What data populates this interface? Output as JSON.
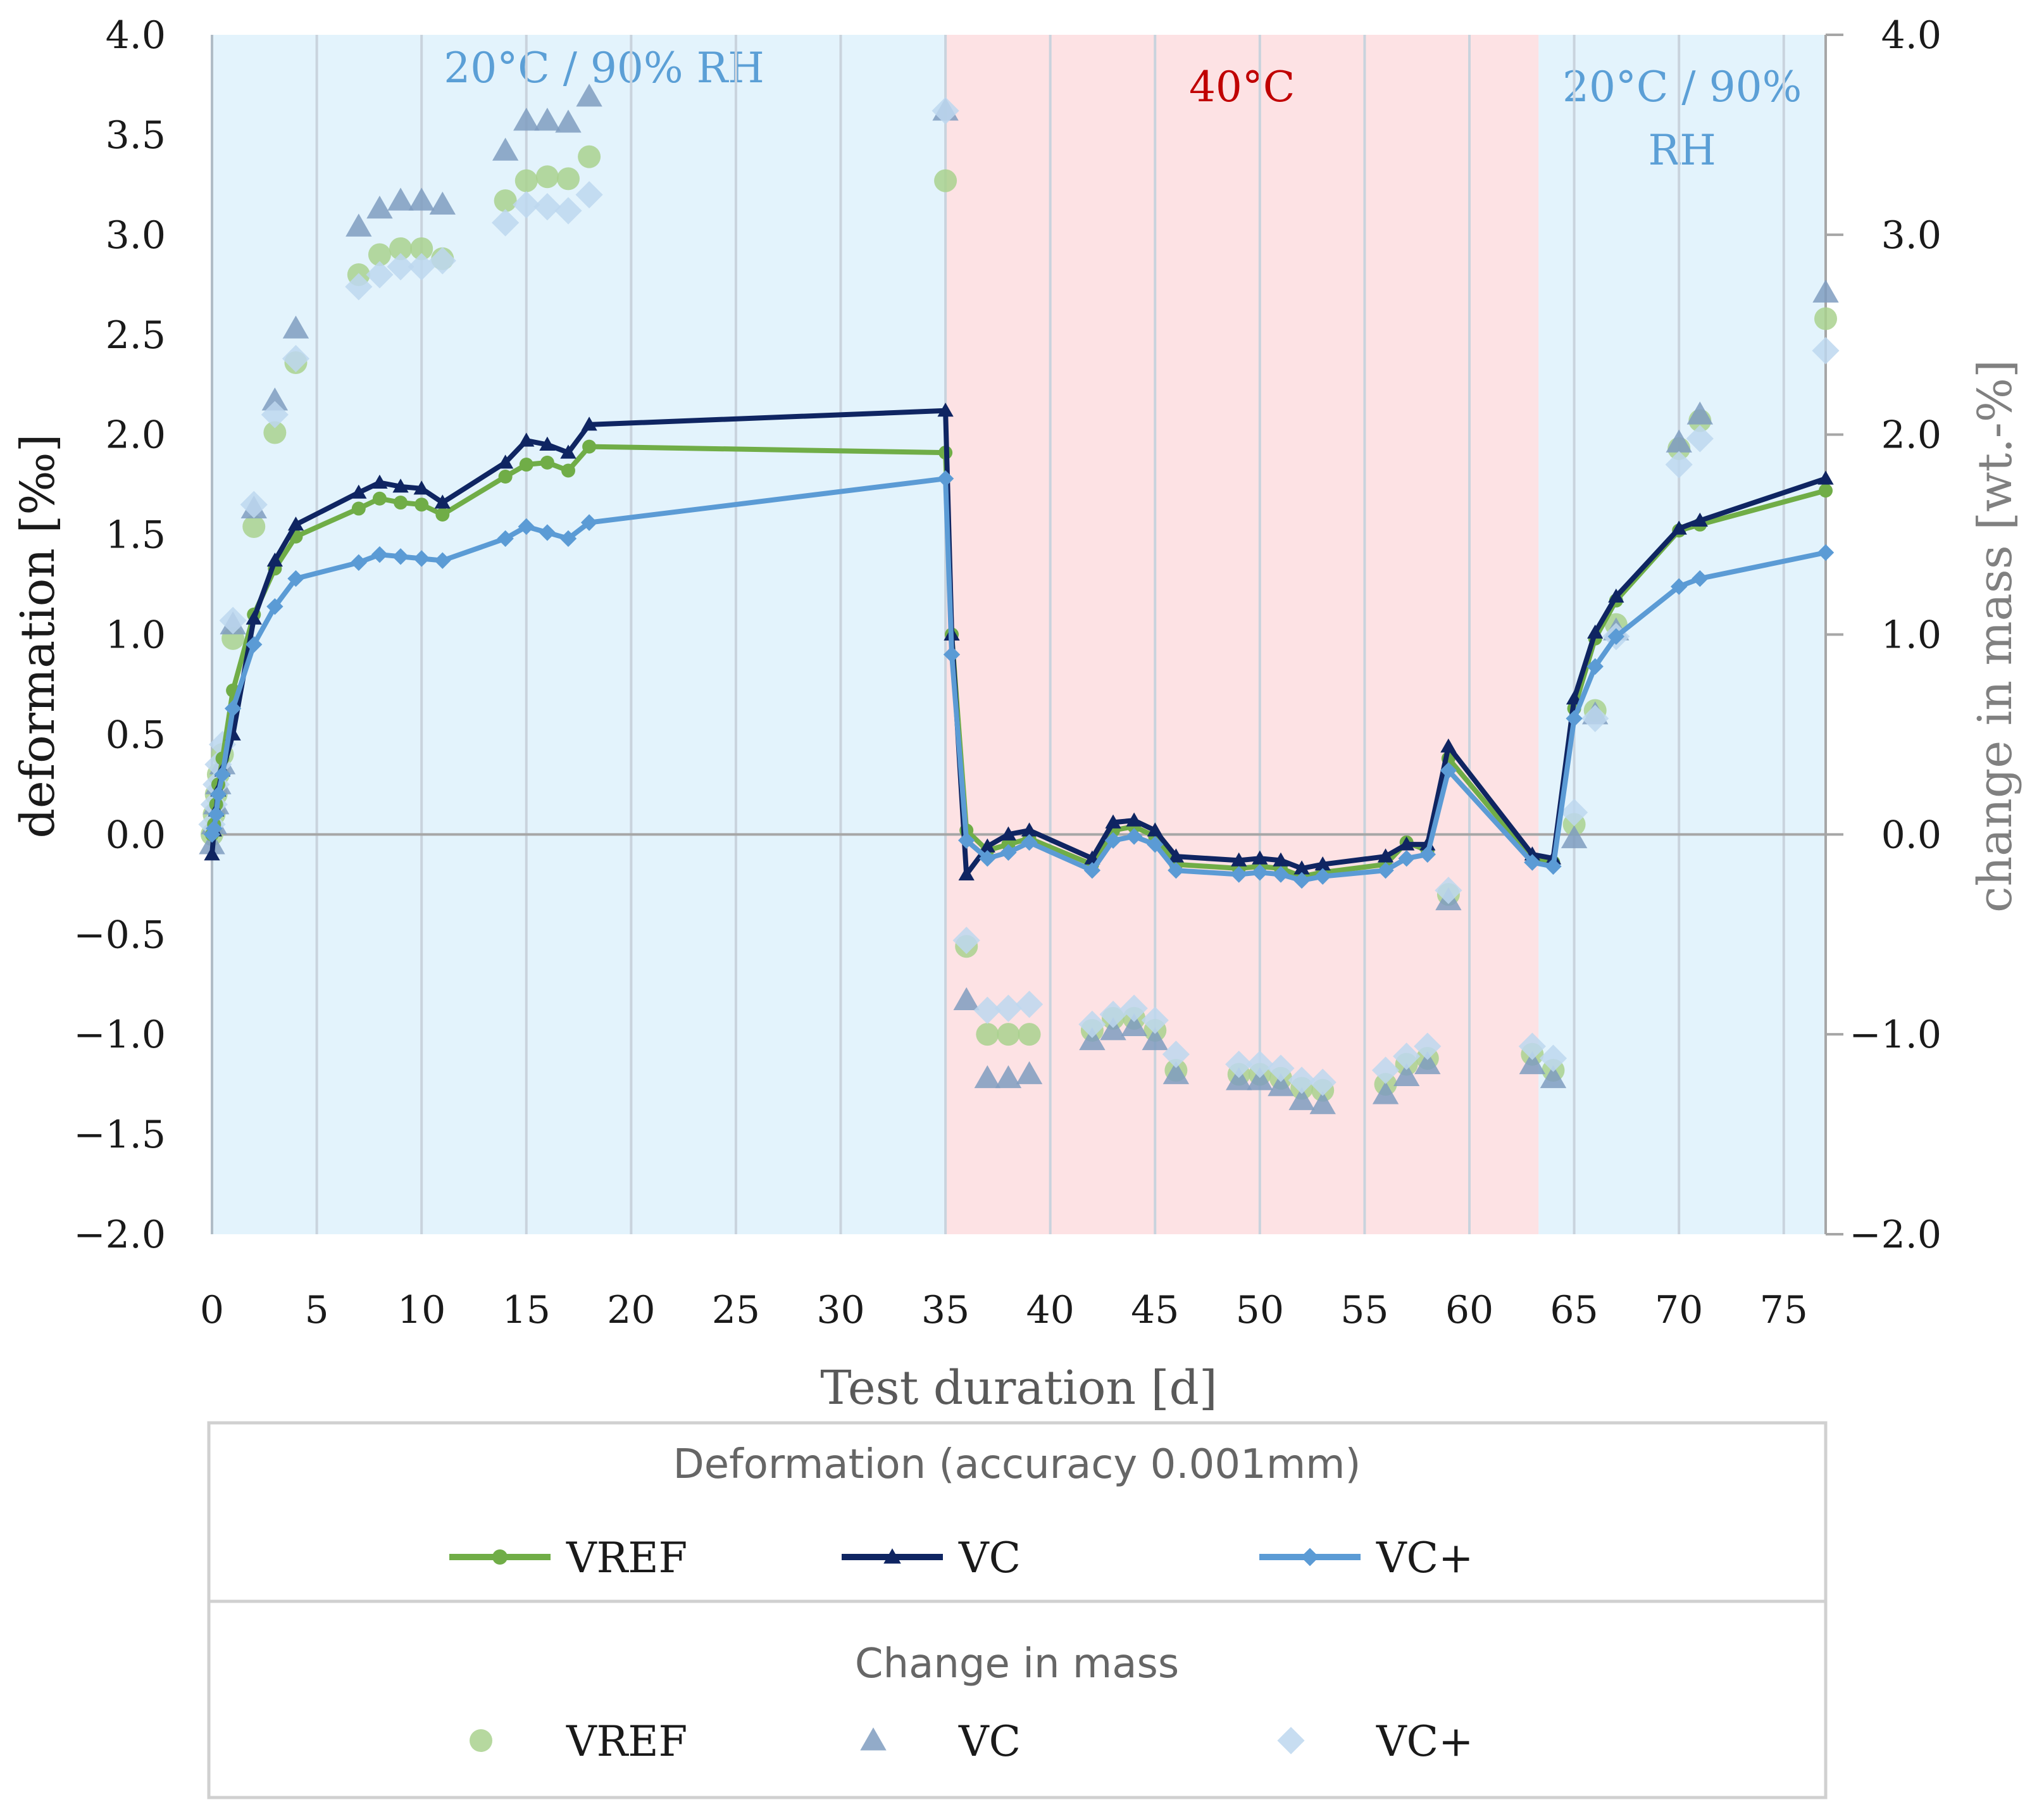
{
  "chart_data": {
    "type": "line",
    "xlabel": "Test duration [d]",
    "ylabel": "deformation [‰]",
    "y2label": "change in mass [wt.-%]",
    "xlim": [
      0,
      77
    ],
    "ylim": [
      -2.0,
      4.0
    ],
    "y2lim": [
      -2.0,
      4.0
    ],
    "x_ticks": [
      "0",
      "5",
      "10",
      "15",
      "20",
      "25",
      "30",
      "35",
      "40",
      "45",
      "50",
      "55",
      "60",
      "65",
      "70",
      "75"
    ],
    "x_tick_values": [
      0,
      5,
      10,
      15,
      20,
      25,
      30,
      35,
      40,
      45,
      50,
      55,
      60,
      65,
      70,
      75
    ],
    "y_ticks": [
      "4.0",
      "3.5",
      "3.0",
      "2.5",
      "2.0",
      "1.5",
      "1.0",
      "0.5",
      "0.0",
      "−0.5",
      "−1.0",
      "−1.5",
      "−2.0"
    ],
    "y_tick_values": [
      4.0,
      3.5,
      3.0,
      2.5,
      2.0,
      1.5,
      1.0,
      0.5,
      0.0,
      -0.5,
      -1.0,
      -1.5,
      -2.0
    ],
    "y2_ticks": [
      "4.0",
      "3.0",
      "2.0",
      "1.0",
      "0.0",
      "−1.0",
      "−2.0"
    ],
    "y2_tick_values": [
      4.0,
      3.0,
      2.0,
      1.0,
      0.0,
      -1.0,
      -2.0
    ],
    "regions": [
      {
        "label": "20°C / 90% RH",
        "x_start": 0,
        "x_end": 35,
        "color": "#e3f3fc",
        "text_color": "#5b9fd6"
      },
      {
        "label": "40°C",
        "x_start": 35,
        "x_end": 63.3,
        "color": "#fde2e4",
        "text_color": "#c00000"
      },
      {
        "label": "20°C / 90% RH",
        "x_start": 63.3,
        "x_end": 77,
        "color": "#e3f3fc",
        "text_color": "#5b9fd6"
      }
    ],
    "series": [
      {
        "name": "VREF",
        "kind": "deformation",
        "marker": "circle",
        "color": "#70ad47",
        "points": [
          [
            0,
            0
          ],
          [
            0.1,
            0.05
          ],
          [
            0.2,
            0.15
          ],
          [
            0.3,
            0.25
          ],
          [
            0.5,
            0.38
          ],
          [
            1,
            0.72
          ],
          [
            2,
            1.1
          ],
          [
            3,
            1.33
          ],
          [
            4,
            1.49
          ],
          [
            7,
            1.63
          ],
          [
            8,
            1.68
          ],
          [
            9,
            1.66
          ],
          [
            10,
            1.65
          ],
          [
            11,
            1.6
          ],
          [
            14,
            1.79
          ],
          [
            15,
            1.85
          ],
          [
            16,
            1.86
          ],
          [
            17,
            1.82
          ],
          [
            18,
            1.94
          ],
          [
            35,
            1.91
          ],
          [
            35.3,
            1.0
          ],
          [
            36,
            0.02
          ],
          [
            37,
            -0.08
          ],
          [
            38,
            -0.05
          ],
          [
            39,
            -0.02
          ],
          [
            42,
            -0.15
          ],
          [
            43,
            0.02
          ],
          [
            44,
            0.04
          ],
          [
            45,
            -0.01
          ],
          [
            46,
            -0.15
          ],
          [
            49,
            -0.17
          ],
          [
            50,
            -0.16
          ],
          [
            51,
            -0.17
          ],
          [
            52,
            -0.21
          ],
          [
            53,
            -0.19
          ],
          [
            56,
            -0.15
          ],
          [
            57,
            -0.04
          ],
          [
            58,
            -0.08
          ],
          [
            59,
            0.38
          ],
          [
            63,
            -0.12
          ],
          [
            64,
            -0.14
          ],
          [
            65,
            0.63
          ],
          [
            66,
            0.98
          ],
          [
            67,
            1.17
          ],
          [
            70,
            1.52
          ],
          [
            71,
            1.55
          ],
          [
            77,
            1.72
          ]
        ]
      },
      {
        "name": "VC",
        "kind": "deformation",
        "marker": "triangle",
        "color": "#0f2562",
        "points": [
          [
            0,
            -0.1
          ],
          [
            0.1,
            0.02
          ],
          [
            0.2,
            0.12
          ],
          [
            0.3,
            0.22
          ],
          [
            0.5,
            0.32
          ],
          [
            1,
            0.5
          ],
          [
            2,
            1.08
          ],
          [
            3,
            1.37
          ],
          [
            4,
            1.55
          ],
          [
            7,
            1.71
          ],
          [
            8,
            1.76
          ],
          [
            9,
            1.74
          ],
          [
            10,
            1.73
          ],
          [
            11,
            1.66
          ],
          [
            14,
            1.86
          ],
          [
            15,
            1.97
          ],
          [
            16,
            1.95
          ],
          [
            17,
            1.91
          ],
          [
            18,
            2.05
          ],
          [
            35,
            2.12
          ],
          [
            35.3,
            1.0
          ],
          [
            36,
            -0.2
          ],
          [
            37,
            -0.06
          ],
          [
            38,
            0.0
          ],
          [
            39,
            0.02
          ],
          [
            42,
            -0.12
          ],
          [
            43,
            0.06
          ],
          [
            44,
            0.07
          ],
          [
            45,
            0.02
          ],
          [
            46,
            -0.11
          ],
          [
            49,
            -0.13
          ],
          [
            50,
            -0.12
          ],
          [
            51,
            -0.13
          ],
          [
            52,
            -0.17
          ],
          [
            53,
            -0.15
          ],
          [
            56,
            -0.11
          ],
          [
            57,
            -0.05
          ],
          [
            58,
            -0.05
          ],
          [
            59,
            0.44
          ],
          [
            63,
            -0.1
          ],
          [
            64,
            -0.12
          ],
          [
            65,
            0.68
          ],
          [
            66,
            1.01
          ],
          [
            67,
            1.19
          ],
          [
            70,
            1.53
          ],
          [
            71,
            1.57
          ],
          [
            77,
            1.78
          ]
        ]
      },
      {
        "name": "VC+",
        "kind": "deformation",
        "marker": "diamond",
        "color": "#5b9bd5",
        "points": [
          [
            0,
            0
          ],
          [
            0.1,
            0.03
          ],
          [
            0.2,
            0.1
          ],
          [
            0.3,
            0.2
          ],
          [
            0.5,
            0.3
          ],
          [
            1,
            0.63
          ],
          [
            2,
            0.95
          ],
          [
            3,
            1.14
          ],
          [
            4,
            1.28
          ],
          [
            7,
            1.36
          ],
          [
            8,
            1.4
          ],
          [
            9,
            1.39
          ],
          [
            10,
            1.38
          ],
          [
            11,
            1.37
          ],
          [
            14,
            1.48
          ],
          [
            15,
            1.54
          ],
          [
            16,
            1.51
          ],
          [
            17,
            1.48
          ],
          [
            18,
            1.56
          ],
          [
            35,
            1.78
          ],
          [
            35.3,
            0.9
          ],
          [
            36,
            -0.03
          ],
          [
            37,
            -0.12
          ],
          [
            38,
            -0.09
          ],
          [
            39,
            -0.04
          ],
          [
            42,
            -0.18
          ],
          [
            43,
            -0.03
          ],
          [
            44,
            -0.01
          ],
          [
            45,
            -0.05
          ],
          [
            46,
            -0.18
          ],
          [
            49,
            -0.2
          ],
          [
            50,
            -0.19
          ],
          [
            51,
            -0.2
          ],
          [
            52,
            -0.23
          ],
          [
            53,
            -0.21
          ],
          [
            56,
            -0.18
          ],
          [
            57,
            -0.12
          ],
          [
            58,
            -0.1
          ],
          [
            59,
            0.32
          ],
          [
            63,
            -0.14
          ],
          [
            64,
            -0.16
          ],
          [
            65,
            0.58
          ],
          [
            66,
            0.84
          ],
          [
            67,
            0.99
          ],
          [
            70,
            1.24
          ],
          [
            71,
            1.28
          ],
          [
            77,
            1.41
          ]
        ]
      },
      {
        "name": "VREF",
        "kind": "mass",
        "marker": "circle",
        "color": "#a9d18e",
        "points": [
          [
            0,
            0
          ],
          [
            0.1,
            0.1
          ],
          [
            0.2,
            0.2
          ],
          [
            0.3,
            0.3
          ],
          [
            0.5,
            0.4
          ],
          [
            1,
            0.98
          ],
          [
            2,
            1.54
          ],
          [
            3,
            2.01
          ],
          [
            4,
            2.36
          ],
          [
            7,
            2.8
          ],
          [
            8,
            2.9
          ],
          [
            9,
            2.93
          ],
          [
            10,
            2.93
          ],
          [
            11,
            2.88
          ],
          [
            14,
            3.17
          ],
          [
            15,
            3.27
          ],
          [
            16,
            3.29
          ],
          [
            17,
            3.28
          ],
          [
            18,
            3.39
          ],
          [
            35,
            3.27
          ],
          [
            36,
            -0.56
          ],
          [
            37,
            -1.0
          ],
          [
            38,
            -1.0
          ],
          [
            39,
            -1.0
          ],
          [
            42,
            -0.98
          ],
          [
            43,
            -0.92
          ],
          [
            44,
            -0.92
          ],
          [
            45,
            -0.98
          ],
          [
            46,
            -1.18
          ],
          [
            49,
            -1.2
          ],
          [
            50,
            -1.2
          ],
          [
            51,
            -1.22
          ],
          [
            52,
            -1.27
          ],
          [
            53,
            -1.28
          ],
          [
            56,
            -1.25
          ],
          [
            57,
            -1.15
          ],
          [
            58,
            -1.12
          ],
          [
            59,
            -0.3
          ],
          [
            63,
            -1.1
          ],
          [
            64,
            -1.18
          ],
          [
            65,
            0.05
          ],
          [
            66,
            0.62
          ],
          [
            67,
            1.05
          ],
          [
            70,
            1.93
          ],
          [
            71,
            2.07
          ],
          [
            77,
            2.58
          ]
        ]
      },
      {
        "name": "VC",
        "kind": "mass",
        "marker": "triangle",
        "color": "#7f9cbf",
        "points": [
          [
            0,
            -0.05
          ],
          [
            0.1,
            0.05
          ],
          [
            0.2,
            0.15
          ],
          [
            0.3,
            0.25
          ],
          [
            0.5,
            0.35
          ],
          [
            1,
            1.05
          ],
          [
            2,
            1.63
          ],
          [
            3,
            2.17
          ],
          [
            4,
            2.53
          ],
          [
            7,
            3.04
          ],
          [
            8,
            3.13
          ],
          [
            9,
            3.17
          ],
          [
            10,
            3.17
          ],
          [
            11,
            3.15
          ],
          [
            14,
            3.42
          ],
          [
            15,
            3.57
          ],
          [
            16,
            3.57
          ],
          [
            17,
            3.56
          ],
          [
            18,
            3.69
          ],
          [
            35,
            3.62
          ],
          [
            36,
            -0.83
          ],
          [
            37,
            -1.22
          ],
          [
            38,
            -1.22
          ],
          [
            39,
            -1.2
          ],
          [
            42,
            -1.03
          ],
          [
            43,
            -0.98
          ],
          [
            44,
            -0.96
          ],
          [
            45,
            -1.03
          ],
          [
            46,
            -1.2
          ],
          [
            49,
            -1.23
          ],
          [
            50,
            -1.23
          ],
          [
            51,
            -1.26
          ],
          [
            52,
            -1.33
          ],
          [
            53,
            -1.35
          ],
          [
            56,
            -1.3
          ],
          [
            57,
            -1.21
          ],
          [
            58,
            -1.15
          ],
          [
            59,
            -0.33
          ],
          [
            63,
            -1.15
          ],
          [
            64,
            -1.22
          ],
          [
            65,
            -0.02
          ],
          [
            66,
            0.6
          ],
          [
            67,
            1.02
          ],
          [
            70,
            1.96
          ],
          [
            71,
            2.1
          ],
          [
            77,
            2.71
          ]
        ]
      },
      {
        "name": "VC+",
        "kind": "mass",
        "marker": "diamond",
        "color": "#bdd7ee",
        "points": [
          [
            0,
            0.05
          ],
          [
            0.1,
            0.15
          ],
          [
            0.2,
            0.25
          ],
          [
            0.3,
            0.35
          ],
          [
            0.5,
            0.45
          ],
          [
            1,
            1.07
          ],
          [
            2,
            1.65
          ],
          [
            3,
            2.1
          ],
          [
            4,
            2.38
          ],
          [
            7,
            2.74
          ],
          [
            8,
            2.8
          ],
          [
            9,
            2.84
          ],
          [
            10,
            2.84
          ],
          [
            11,
            2.87
          ],
          [
            14,
            3.06
          ],
          [
            15,
            3.15
          ],
          [
            16,
            3.14
          ],
          [
            17,
            3.12
          ],
          [
            18,
            3.2
          ],
          [
            35,
            3.62
          ],
          [
            36,
            -0.53
          ],
          [
            37,
            -0.88
          ],
          [
            38,
            -0.87
          ],
          [
            39,
            -0.85
          ],
          [
            42,
            -0.95
          ],
          [
            43,
            -0.9
          ],
          [
            44,
            -0.87
          ],
          [
            45,
            -0.93
          ],
          [
            46,
            -1.1
          ],
          [
            49,
            -1.15
          ],
          [
            50,
            -1.15
          ],
          [
            51,
            -1.17
          ],
          [
            52,
            -1.23
          ],
          [
            53,
            -1.24
          ],
          [
            56,
            -1.18
          ],
          [
            57,
            -1.11
          ],
          [
            58,
            -1.06
          ],
          [
            59,
            -0.28
          ],
          [
            63,
            -1.06
          ],
          [
            64,
            -1.12
          ],
          [
            65,
            0.11
          ],
          [
            66,
            0.58
          ],
          [
            67,
            0.99
          ],
          [
            70,
            1.85
          ],
          [
            71,
            1.98
          ],
          [
            77,
            2.42
          ]
        ]
      }
    ],
    "legend": {
      "deformation_title": "Deformation (accuracy 0.001mm)",
      "mass_title": "Change in mass",
      "labels": [
        "VREF",
        "VC",
        "VC+"
      ]
    }
  }
}
